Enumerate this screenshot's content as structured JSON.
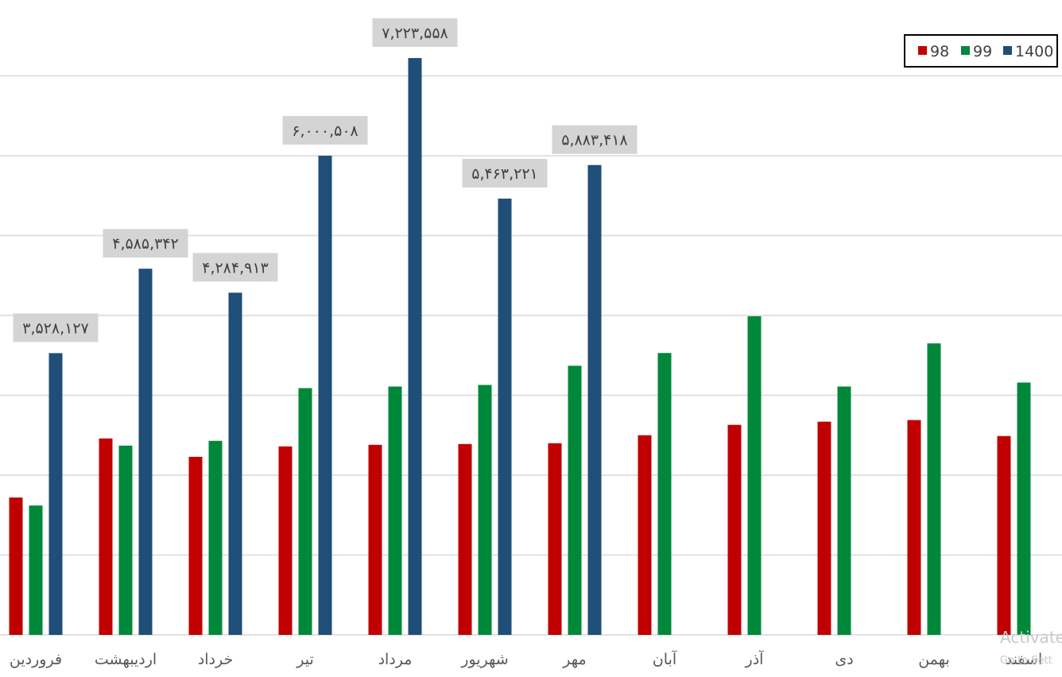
{
  "chart_data": {
    "type": "bar",
    "title": "",
    "xlabel": "",
    "ylabel": "",
    "ylim": [
      0,
      8000000
    ],
    "grid": true,
    "legend_position": "top-right",
    "categories": [
      "فروردین",
      "اردیبهشت",
      "خرداد",
      "تیر",
      "مرداد",
      "شهریور",
      "مهر",
      "آبان",
      "آذر",
      "دی",
      "بهمن",
      "اسفند"
    ],
    "series": [
      {
        "name": "98",
        "color": "#c00000",
        "values": [
          1720000,
          2460000,
          2230000,
          2360000,
          2380000,
          2390000,
          2400000,
          2500000,
          2630000,
          2670000,
          2690000,
          2490000
        ]
      },
      {
        "name": "99",
        "color": "#00883a",
        "values": [
          1620000,
          2370000,
          2430000,
          3090000,
          3110000,
          3130000,
          3370000,
          3530000,
          3990000,
          3110000,
          3650000,
          3160000
        ]
      },
      {
        "name": "1400",
        "color": "#1f4e79",
        "values": [
          3528127,
          4585342,
          4284913,
          6000508,
          7223558,
          5463221,
          5883418,
          null,
          null,
          null,
          null,
          null
        ]
      }
    ],
    "data_labels": [
      "۳,۵۲۸,۱۲۷",
      "۴,۵۸۵,۳۴۲",
      "۴,۲۸۴,۹۱۳",
      "۶,۰۰۰,۵۰۸",
      "۷,۲۲۳,۵۵۸",
      "۵,۴۶۳,۲۲۱",
      "۵,۸۸۳,۴۱۸",
      null,
      null,
      null,
      null,
      null
    ]
  },
  "watermark": {
    "line1": "Activate",
    "line2": "Go to Sett"
  }
}
